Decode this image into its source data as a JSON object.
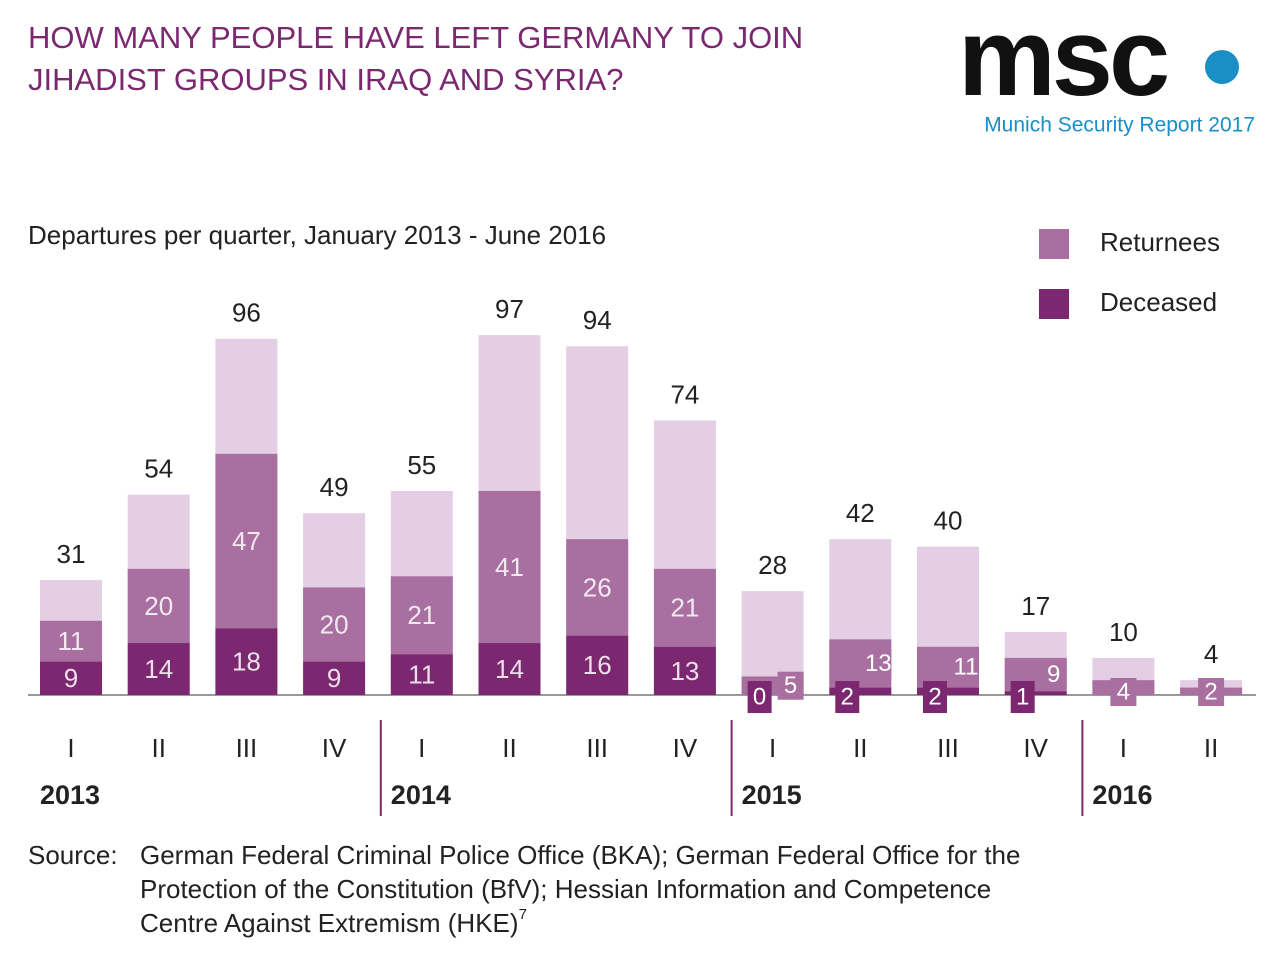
{
  "logo": {
    "mark": "msc",
    "subtitle": "Munich Security Report 2017"
  },
  "chart_data": {
    "type": "bar",
    "title": [
      "HOW MANY PEOPLE HAVE LEFT GERMANY TO JOIN",
      "JIHADIST GROUPS IN IRAQ AND SYRIA?"
    ],
    "subtitle": "Departures per quarter, January 2013 - June 2016",
    "categories": [
      "I",
      "II",
      "III",
      "IV",
      "I",
      "II",
      "III",
      "IV",
      "I",
      "II",
      "III",
      "IV",
      "I",
      "II"
    ],
    "groups": [
      "2013",
      "2014",
      "2015",
      "2016"
    ],
    "values": [
      31,
      54,
      96,
      49,
      55,
      97,
      94,
      74,
      28,
      42,
      40,
      17,
      10,
      4
    ],
    "color": "#e4cee4",
    "series": [
      {
        "name": "Deceased",
        "color": "#7b2870",
        "values": [
          9,
          14,
          18,
          9,
          11,
          14,
          16,
          13,
          0,
          2,
          2,
          1,
          null,
          null
        ]
      },
      {
        "name": "Returnees",
        "color": "#a86fa0",
        "values": [
          11,
          20,
          47,
          20,
          21,
          41,
          26,
          21,
          5,
          13,
          11,
          9,
          4,
          2
        ]
      }
    ],
    "ylim": [
      0,
      100
    ],
    "source_label": "Source:",
    "source_lines": [
      "German Federal Criminal Police Office (BKA); German Federal Office for the",
      "Protection of the Constitution (BfV); Hessian Information and Competence",
      "Centre Against Extremism (HKE)"
    ],
    "source_note": "7"
  }
}
